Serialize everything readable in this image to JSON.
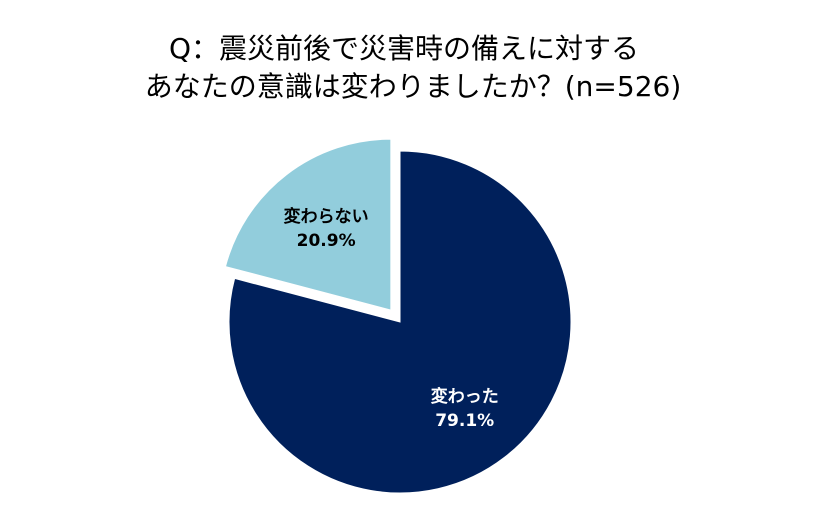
{
  "chart_data": {
    "type": "pie",
    "title_lines": [
      "Q：震災前後で災害時の備えに対する",
      "あなたの意識は変わりましたか？(n=526)"
    ],
    "slices": [
      {
        "label": "変わった",
        "value": 79.1,
        "value_label": "79.1%",
        "color": "#00205B",
        "label_color": "#ffffff",
        "exploded": false
      },
      {
        "label": "変わらない",
        "value": 20.9,
        "value_label": "20.9%",
        "color": "#92CDDC",
        "label_color": "#000000",
        "exploded": true
      }
    ],
    "start_angle": "12 o'clock",
    "direction": "clockwise",
    "legend": "none"
  }
}
